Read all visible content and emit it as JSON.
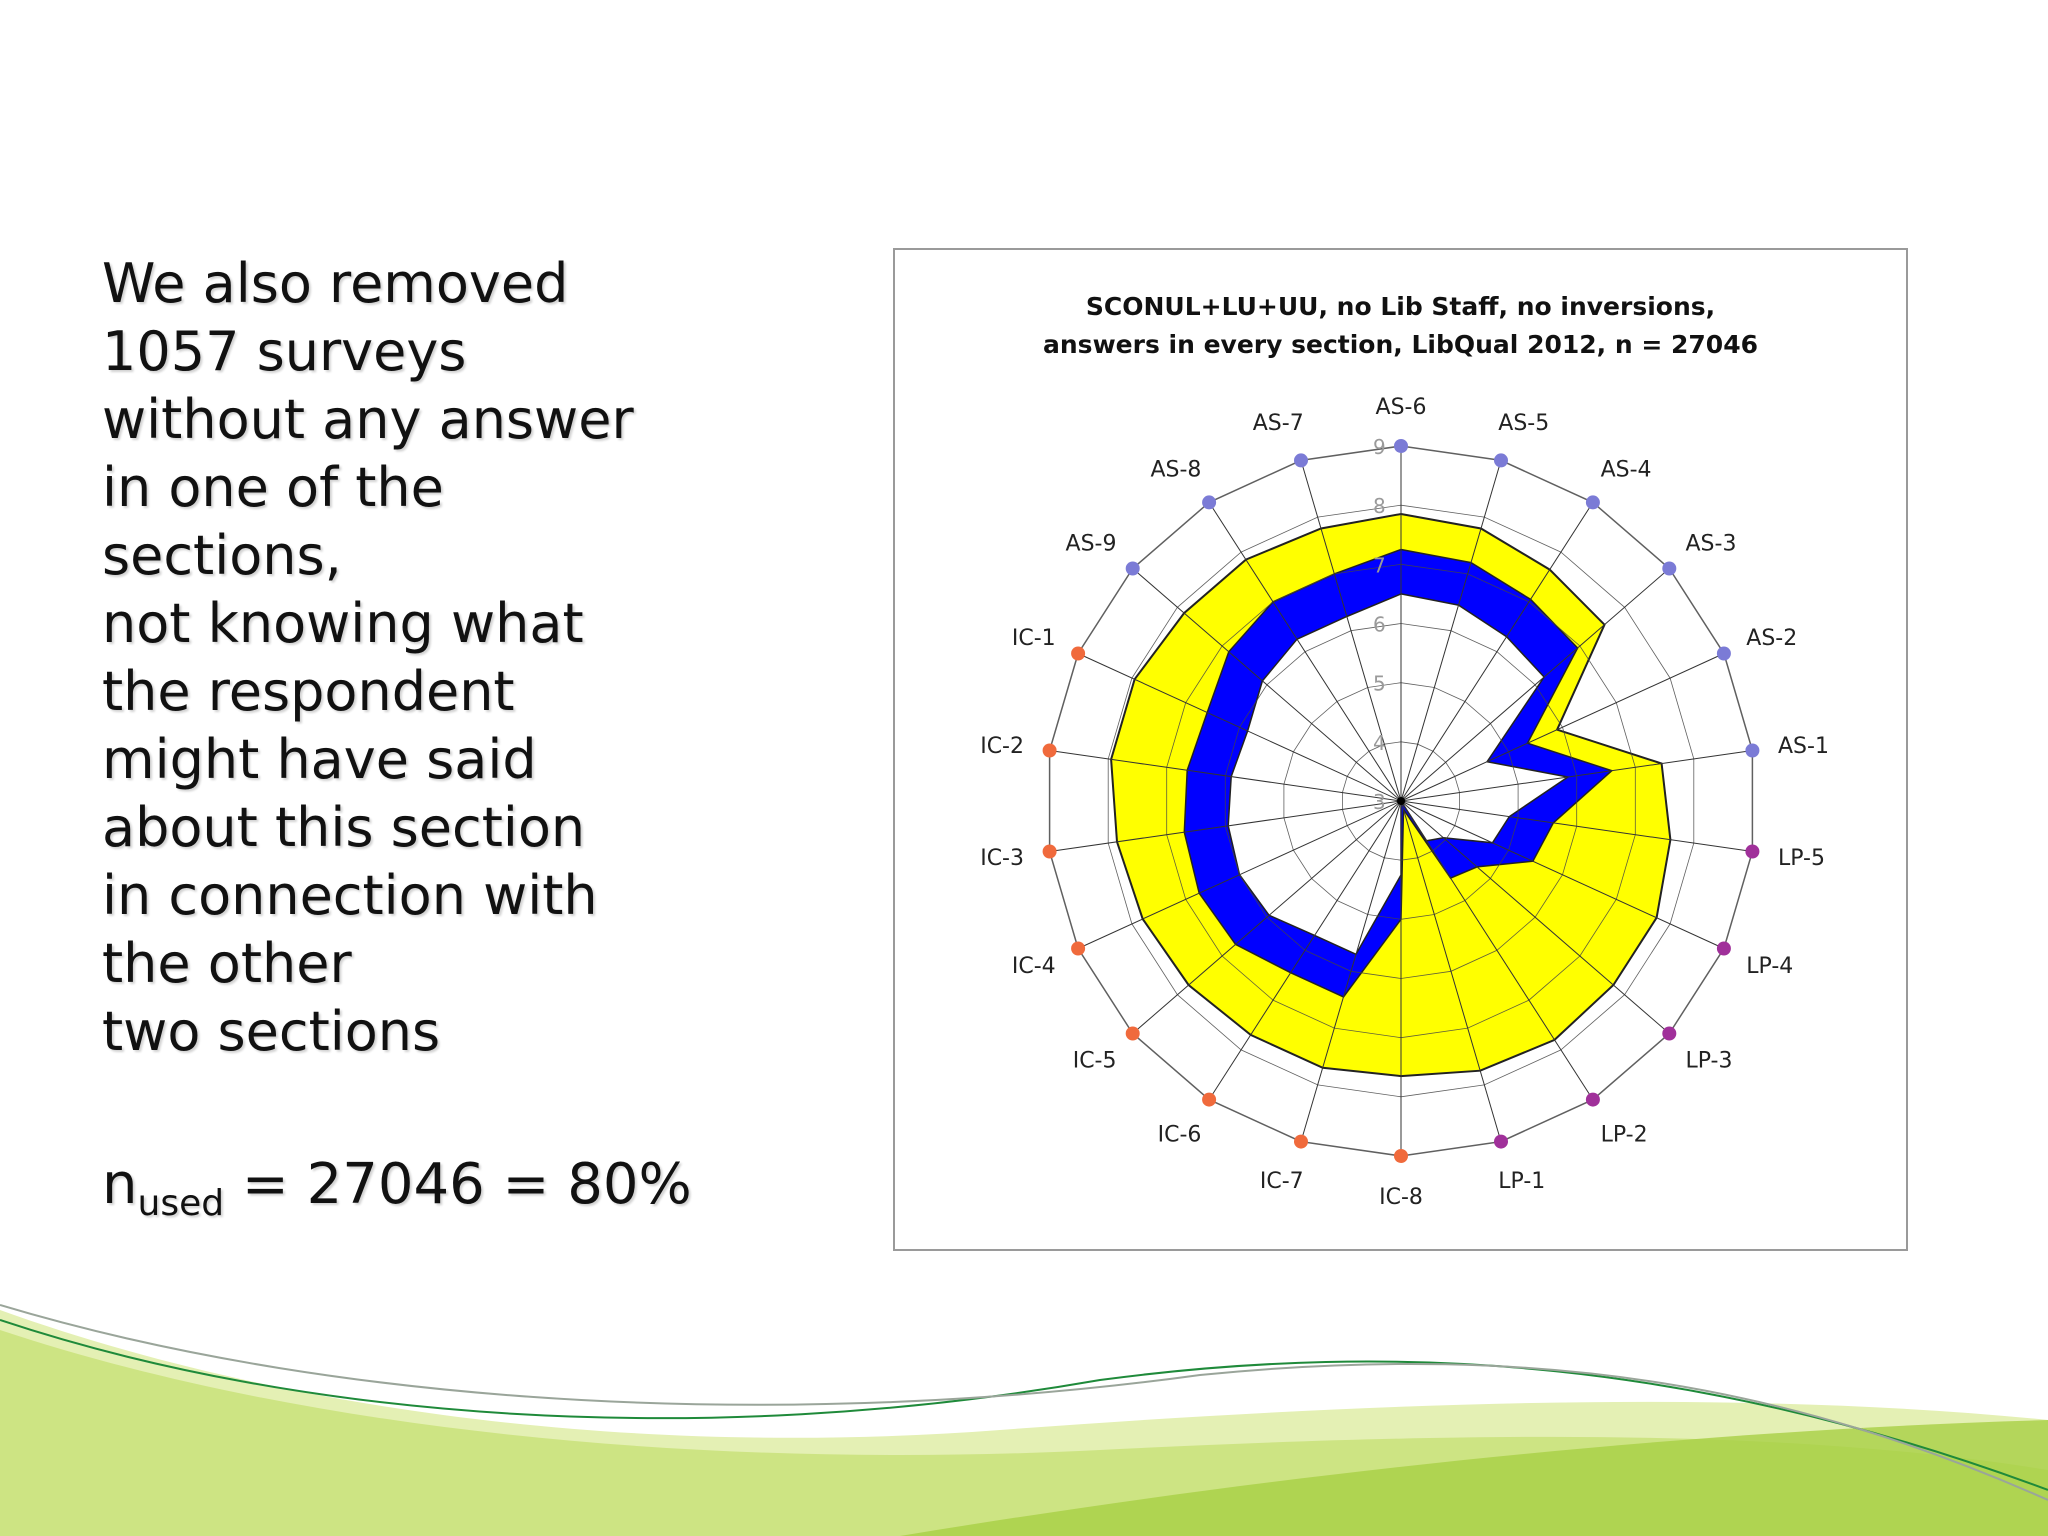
{
  "slide": {
    "text_lines": [
      "We also removed",
      "1057 surveys",
      "without any answer",
      "in one of the",
      "sections,",
      "not knowing what",
      "the respondent",
      "might have said",
      "about this section",
      "in connection with",
      "the other",
      "two sections"
    ],
    "n_used": {
      "base": "n",
      "subscript": "used",
      "value": " = 27046 = 80%"
    }
  },
  "chart_data": {
    "type": "radar",
    "title_lines": [
      "SCONUL+LU+UU, no Lib Staff, no inversions,",
      "answers in every section, LibQual 2012, n = 27046"
    ],
    "axis_labels": [
      "AS-6",
      "AS-5",
      "AS-4",
      "AS-3",
      "AS-2",
      "AS-1",
      "LP-5",
      "LP-4",
      "LP-3",
      "LP-2",
      "LP-1",
      "IC-8",
      "IC-7",
      "IC-6",
      "IC-5",
      "IC-4",
      "IC-3",
      "IC-2",
      "IC-1",
      "AS-9",
      "AS-8",
      "AS-7"
    ],
    "axis_colors": [
      "#7b7bd6",
      "#7b7bd6",
      "#7b7bd6",
      "#7b7bd6",
      "#7b7bd6",
      "#7b7bd6",
      "#a0309a",
      "#a0309a",
      "#a0309a",
      "#a0309a",
      "#a0309a",
      "#f06a3c",
      "#f06a3c",
      "#f06a3c",
      "#f06a3c",
      "#f06a3c",
      "#f06a3c",
      "#f06a3c",
      "#f06a3c",
      "#7b7bd6",
      "#7b7bd6",
      "#7b7bd6"
    ],
    "radial_range": [
      3,
      9
    ],
    "radial_ticks": [
      "3",
      "4",
      "5",
      "6",
      "7",
      "8",
      "9"
    ],
    "series": [
      {
        "values": [
          7.85,
          7.8,
          7.65,
          7.55,
          5.9,
          7.45,
          7.6,
          7.75,
          7.75,
          7.8,
          7.75,
          7.65,
          7.7,
          7.7,
          7.75,
          7.8,
          7.85,
          7.95,
          7.95,
          7.85,
          7.85,
          7.8
        ],
        "color": "#ffff00"
      },
      {
        "values": [
          7.25,
          7.2,
          7.05,
          6.95,
          5.35,
          6.6,
          5.6,
          5.45,
          4.7,
          4.55,
          3.15,
          5.0,
          6.45,
          6.45,
          6.7,
          6.75,
          6.7,
          6.65,
          6.6,
          6.85,
          7.0,
          7.0
        ],
        "color": "#0000ff"
      }
    ],
    "grid": true
  },
  "colors": {
    "text": "#111111",
    "frame_border": "#9a9a9a",
    "grid_line": "#333333",
    "background_wave_light": "#d4e88a",
    "background_wave_mid": "#a8cf45",
    "background_wave_line": "#1f8a3a"
  }
}
